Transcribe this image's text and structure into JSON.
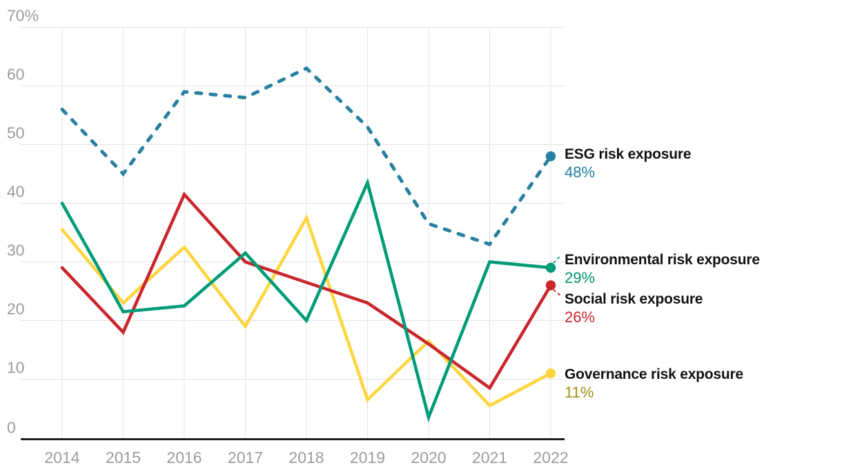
{
  "chart_data": {
    "type": "line",
    "x": [
      "2014",
      "2015",
      "2016",
      "2017",
      "2018",
      "2019",
      "2020",
      "2021",
      "2022"
    ],
    "series": [
      {
        "name": "ESG risk exposure",
        "values": [
          56,
          45,
          59,
          58,
          63,
          53,
          36.5,
          33,
          48
        ],
        "color": "#27809f",
        "value_color": "#1f7f9f",
        "style": "dashed",
        "end_label": "48%"
      },
      {
        "name": "Environmental risk exposure",
        "values": [
          40,
          21.5,
          22.5,
          31.5,
          20,
          43.5,
          3.5,
          30,
          29
        ],
        "color": "#009b78",
        "value_color": "#00916e",
        "style": "solid",
        "end_label": "29%"
      },
      {
        "name": "Social risk exposure",
        "values": [
          29,
          18,
          41.5,
          30,
          26.5,
          23,
          16,
          8.5,
          26
        ],
        "color": "#c9262d",
        "value_color": "#c9262d",
        "style": "solid",
        "end_label": "26%"
      },
      {
        "name": "Governance risk exposure",
        "values": [
          35.5,
          23,
          32.5,
          19,
          37.5,
          6.5,
          16.5,
          5.5,
          11
        ],
        "color": "#fdd640",
        "value_color": "#a3920f",
        "style": "solid",
        "end_label": "11%"
      }
    ],
    "title": "",
    "xlabel": "",
    "ylabel": "",
    "ylim": [
      0,
      70
    ],
    "y_ticks": [
      70,
      60,
      50,
      40,
      30,
      20,
      10,
      0
    ],
    "y_tick_labels": [
      "70%",
      "60",
      "50",
      "40",
      "30",
      "20",
      "10",
      "0"
    ],
    "grid": true,
    "legend_position": "right-annotations"
  },
  "colors": {
    "gridline": "#e3e3e3",
    "axis_line": "#1f1f1f",
    "tick_text": "#9b9b9b",
    "label_text": "#121212",
    "background": "#ffffff"
  }
}
